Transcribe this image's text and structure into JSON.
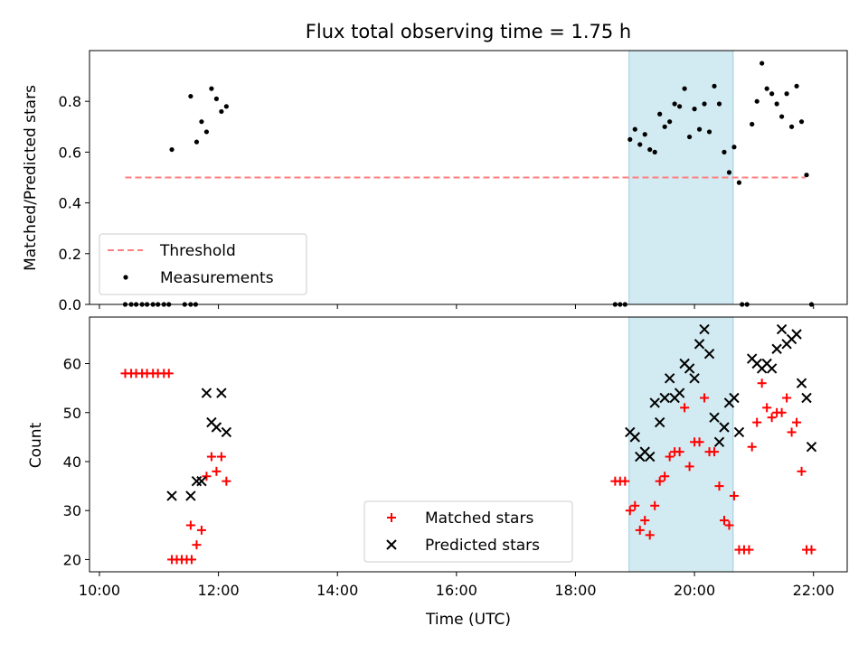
{
  "figure": {
    "title": "Flux total observing time = 1.75 h",
    "xlabel": "Time (UTC)"
  },
  "colors": {
    "threshold": "#ff7f7f",
    "shade": "#add8e6",
    "matched": "#ff0000",
    "predicted": "#000000",
    "measurements": "#000000"
  },
  "chart_data": [
    {
      "type": "scatter",
      "ylabel": "Matched/Predicted stars",
      "xlim": [
        "09:50",
        "22:34"
      ],
      "ylim": [
        0,
        1.0
      ],
      "yticks": [
        "0.0",
        "0.2",
        "0.4",
        "0.6",
        "0.8"
      ],
      "grid": false,
      "legend_position": "lower left",
      "shaded_interval": [
        "18:54",
        "20:39"
      ],
      "threshold": {
        "name": "Threshold",
        "y": 0.5,
        "x_range": [
          "10:26",
          "21:52"
        ]
      },
      "series": [
        {
          "name": "Measurements",
          "points": [
            [
              "10:26",
              0
            ],
            [
              "10:32",
              0
            ],
            [
              "10:37",
              0
            ],
            [
              "10:43",
              0
            ],
            [
              "10:48",
              0
            ],
            [
              "10:54",
              0
            ],
            [
              "10:59",
              0
            ],
            [
              "11:05",
              0
            ],
            [
              "11:10",
              0
            ],
            [
              "11:26",
              0
            ],
            [
              "11:32",
              0
            ],
            [
              "11:37",
              0
            ],
            [
              "11:13",
              0.61
            ],
            [
              "11:32",
              0.82
            ],
            [
              "11:38",
              0.64
            ],
            [
              "11:43",
              0.72
            ],
            [
              "11:48",
              0.68
            ],
            [
              "11:53",
              0.85
            ],
            [
              "11:58",
              0.81
            ],
            [
              "12:03",
              0.76
            ],
            [
              "12:08",
              0.78
            ],
            [
              "18:40",
              0
            ],
            [
              "18:45",
              0
            ],
            [
              "18:50",
              0
            ],
            [
              "18:55",
              0.65
            ],
            [
              "19:00",
              0.69
            ],
            [
              "19:05",
              0.63
            ],
            [
              "19:10",
              0.67
            ],
            [
              "19:15",
              0.61
            ],
            [
              "19:20",
              0.6
            ],
            [
              "19:25",
              0.75
            ],
            [
              "19:30",
              0.7
            ],
            [
              "19:35",
              0.72
            ],
            [
              "19:40",
              0.79
            ],
            [
              "19:45",
              0.78
            ],
            [
              "19:50",
              0.85
            ],
            [
              "19:55",
              0.66
            ],
            [
              "20:00",
              0.77
            ],
            [
              "20:05",
              0.69
            ],
            [
              "20:10",
              0.79
            ],
            [
              "20:15",
              0.68
            ],
            [
              "20:20",
              0.86
            ],
            [
              "20:25",
              0.79
            ],
            [
              "20:30",
              0.6
            ],
            [
              "20:35",
              0.52
            ],
            [
              "20:40",
              0.62
            ],
            [
              "20:45",
              0.48
            ],
            [
              "20:48",
              0
            ],
            [
              "20:53",
              0
            ],
            [
              "20:58",
              0.71
            ],
            [
              "21:03",
              0.8
            ],
            [
              "21:08",
              0.95
            ],
            [
              "21:13",
              0.85
            ],
            [
              "21:18",
              0.83
            ],
            [
              "21:23",
              0.79
            ],
            [
              "21:28",
              0.74
            ],
            [
              "21:33",
              0.83
            ],
            [
              "21:38",
              0.7
            ],
            [
              "21:43",
              0.86
            ],
            [
              "21:48",
              0.72
            ],
            [
              "21:53",
              0.51
            ],
            [
              "21:58",
              0
            ]
          ]
        }
      ]
    },
    {
      "type": "scatter",
      "ylabel": "Count",
      "xlim": [
        "09:50",
        "22:34"
      ],
      "ylim": [
        17.5,
        69.5
      ],
      "yticks": [
        "20",
        "30",
        "40",
        "50",
        "60"
      ],
      "xticks": [
        "10:00",
        "12:00",
        "14:00",
        "16:00",
        "18:00",
        "20:00",
        "22:00"
      ],
      "grid": false,
      "legend_position": "lower center",
      "shaded_interval": [
        "18:54",
        "20:39"
      ],
      "series": [
        {
          "name": "Matched stars",
          "marker": "plus",
          "points": [
            [
              "10:26",
              58
            ],
            [
              "10:32",
              58
            ],
            [
              "10:37",
              58
            ],
            [
              "10:43",
              58
            ],
            [
              "10:48",
              58
            ],
            [
              "10:54",
              58
            ],
            [
              "10:59",
              58
            ],
            [
              "11:05",
              58
            ],
            [
              "11:10",
              58
            ],
            [
              "11:13",
              20
            ],
            [
              "11:18",
              20
            ],
            [
              "11:23",
              20
            ],
            [
              "11:28",
              20
            ],
            [
              "11:33",
              20
            ],
            [
              "11:32",
              27
            ],
            [
              "11:38",
              23
            ],
            [
              "11:43",
              26
            ],
            [
              "11:48",
              37
            ],
            [
              "11:53",
              41
            ],
            [
              "11:58",
              38
            ],
            [
              "12:03",
              41
            ],
            [
              "12:08",
              36
            ],
            [
              "18:40",
              36
            ],
            [
              "18:45",
              36
            ],
            [
              "18:50",
              36
            ],
            [
              "18:55",
              30
            ],
            [
              "19:00",
              31
            ],
            [
              "19:05",
              26
            ],
            [
              "19:10",
              28
            ],
            [
              "19:15",
              25
            ],
            [
              "19:20",
              31
            ],
            [
              "19:25",
              36
            ],
            [
              "19:30",
              37
            ],
            [
              "19:35",
              41
            ],
            [
              "19:40",
              42
            ],
            [
              "19:45",
              42
            ],
            [
              "19:50",
              51
            ],
            [
              "19:55",
              39
            ],
            [
              "20:00",
              44
            ],
            [
              "20:05",
              44
            ],
            [
              "20:10",
              53
            ],
            [
              "20:15",
              42
            ],
            [
              "20:20",
              42
            ],
            [
              "20:25",
              35
            ],
            [
              "20:30",
              28
            ],
            [
              "20:35",
              27
            ],
            [
              "20:40",
              33
            ],
            [
              "20:45",
              22
            ],
            [
              "20:50",
              22
            ],
            [
              "20:55",
              22
            ],
            [
              "20:58",
              43
            ],
            [
              "21:03",
              48
            ],
            [
              "21:08",
              56
            ],
            [
              "21:13",
              51
            ],
            [
              "21:18",
              49
            ],
            [
              "21:23",
              50
            ],
            [
              "21:28",
              50
            ],
            [
              "21:33",
              53
            ],
            [
              "21:38",
              46
            ],
            [
              "21:43",
              48
            ],
            [
              "21:48",
              38
            ],
            [
              "21:53",
              22
            ],
            [
              "21:58",
              22
            ]
          ]
        },
        {
          "name": "Predicted stars",
          "marker": "x",
          "points": [
            [
              "11:13",
              33
            ],
            [
              "11:32",
              33
            ],
            [
              "11:38",
              36
            ],
            [
              "11:43",
              36
            ],
            [
              "11:48",
              54
            ],
            [
              "11:53",
              48
            ],
            [
              "11:58",
              47
            ],
            [
              "12:03",
              54
            ],
            [
              "12:08",
              46
            ],
            [
              "18:55",
              46
            ],
            [
              "19:00",
              45
            ],
            [
              "19:05",
              41
            ],
            [
              "19:10",
              42
            ],
            [
              "19:15",
              41
            ],
            [
              "19:20",
              52
            ],
            [
              "19:25",
              48
            ],
            [
              "19:30",
              53
            ],
            [
              "19:35",
              57
            ],
            [
              "19:40",
              53
            ],
            [
              "19:45",
              54
            ],
            [
              "19:50",
              60
            ],
            [
              "19:55",
              59
            ],
            [
              "20:00",
              57
            ],
            [
              "20:05",
              64
            ],
            [
              "20:10",
              67
            ],
            [
              "20:15",
              62
            ],
            [
              "20:20",
              49
            ],
            [
              "20:25",
              44
            ],
            [
              "20:30",
              47
            ],
            [
              "20:35",
              52
            ],
            [
              "20:40",
              53
            ],
            [
              "20:45",
              46
            ],
            [
              "20:58",
              61
            ],
            [
              "21:03",
              60
            ],
            [
              "21:08",
              59
            ],
            [
              "21:13",
              60
            ],
            [
              "21:18",
              59
            ],
            [
              "21:23",
              63
            ],
            [
              "21:28",
              67
            ],
            [
              "21:33",
              64
            ],
            [
              "21:38",
              65
            ],
            [
              "21:43",
              66
            ],
            [
              "21:48",
              56
            ],
            [
              "21:53",
              53
            ],
            [
              "21:58",
              43
            ]
          ]
        }
      ]
    }
  ]
}
